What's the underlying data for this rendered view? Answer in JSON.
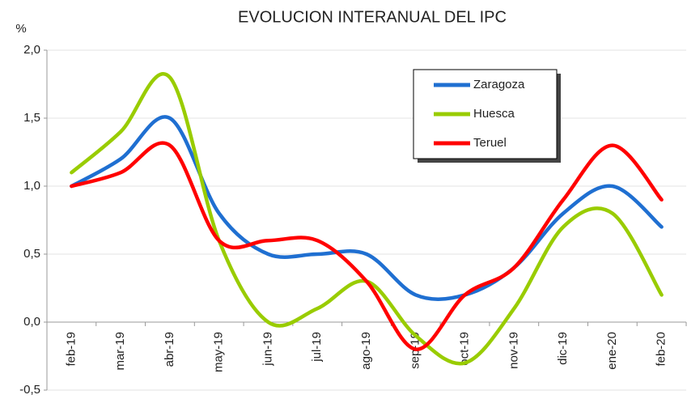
{
  "chart_data": {
    "type": "line",
    "title": "EVOLUCION INTERANUAL DEL IPC",
    "y_label": "%",
    "categories": [
      "feb-19",
      "mar-19",
      "abr-19",
      "may-19",
      "jun-19",
      "jul-19",
      "ago-19",
      "sep-19",
      "oct-19",
      "nov-19",
      "dic-19",
      "ene-20",
      "feb-20"
    ],
    "series": [
      {
        "name": "Zaragoza",
        "color": "#1f6fd1",
        "values": [
          1.0,
          1.2,
          1.5,
          0.8,
          0.5,
          0.5,
          0.5,
          0.2,
          0.2,
          0.4,
          0.8,
          1.0,
          0.7
        ]
      },
      {
        "name": "Huesca",
        "color": "#99cc00",
        "values": [
          1.1,
          1.4,
          1.8,
          0.6,
          0.0,
          0.1,
          0.3,
          -0.1,
          -0.3,
          0.1,
          0.7,
          0.8,
          0.2
        ]
      },
      {
        "name": "Teruel",
        "color": "#ff0000",
        "values": [
          1.0,
          1.1,
          1.3,
          0.6,
          0.6,
          0.6,
          0.3,
          -0.2,
          0.2,
          0.4,
          0.9,
          1.3,
          0.9
        ]
      }
    ],
    "ylim": [
      -0.5,
      2.0
    ],
    "yticks": [
      {
        "value": -0.5,
        "label": "-0,5"
      },
      {
        "value": 0.0,
        "label": "0,0"
      },
      {
        "value": 0.5,
        "label": "0,5"
      },
      {
        "value": 1.0,
        "label": "1,0"
      },
      {
        "value": 1.5,
        "label": "1,5"
      },
      {
        "value": 2.0,
        "label": "2,0"
      }
    ],
    "grid": true,
    "legend": "upper-right",
    "smooth": true
  }
}
